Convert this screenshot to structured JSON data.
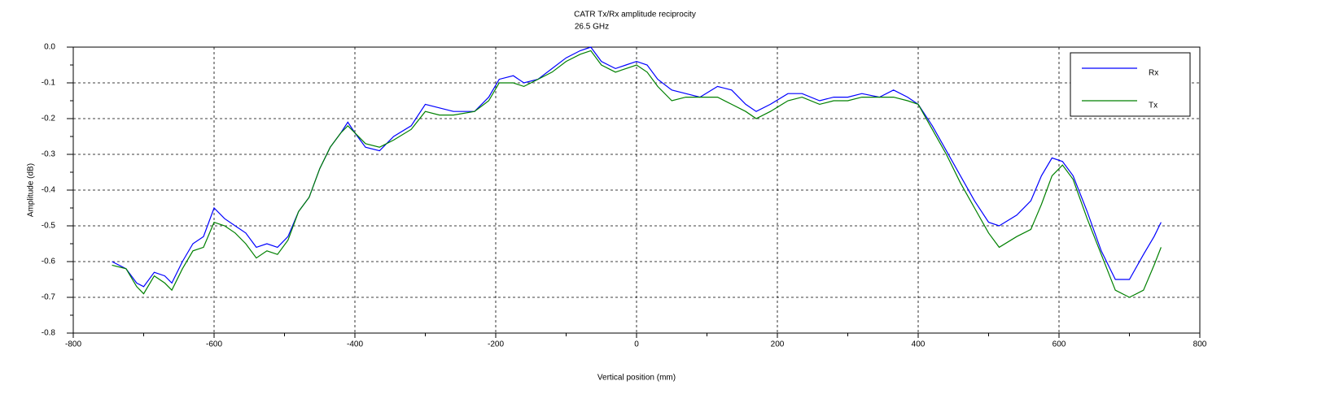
{
  "chart_data": {
    "type": "line",
    "title": "CATR Tx/Rx amplitude reciprocity",
    "subtitle": "26.5 GHz",
    "x_label": "Vertical position (mm)",
    "y_label": "Amplitude (dB)",
    "x": [
      -745,
      -725,
      -710,
      -700,
      -685,
      -670,
      -660,
      -645,
      -630,
      -615,
      -600,
      -585,
      -570,
      -555,
      -540,
      -525,
      -510,
      -495,
      -480,
      -465,
      -450,
      -435,
      -420,
      -410,
      -400,
      -385,
      -365,
      -345,
      -320,
      -300,
      -280,
      -260,
      -230,
      -210,
      -195,
      -175,
      -160,
      -140,
      -120,
      -100,
      -80,
      -65,
      -50,
      -30,
      -15,
      0,
      15,
      30,
      50,
      70,
      90,
      115,
      135,
      155,
      170,
      190,
      215,
      235,
      260,
      280,
      300,
      320,
      345,
      365,
      385,
      400,
      420,
      440,
      460,
      480,
      500,
      515,
      540,
      560,
      575,
      590,
      605,
      620,
      640,
      660,
      680,
      700,
      720,
      735,
      745
    ],
    "series": [
      {
        "name": "Rx",
        "color": "#0000ff",
        "values": [
          -0.6,
          -0.62,
          -0.66,
          -0.67,
          -0.63,
          -0.64,
          -0.66,
          -0.6,
          -0.55,
          -0.53,
          -0.45,
          -0.48,
          -0.5,
          -0.52,
          -0.56,
          -0.55,
          -0.56,
          -0.53,
          -0.46,
          -0.42,
          -0.34,
          -0.28,
          -0.24,
          -0.21,
          -0.24,
          -0.28,
          -0.29,
          -0.25,
          -0.22,
          -0.16,
          -0.17,
          -0.18,
          -0.18,
          -0.14,
          -0.09,
          -0.08,
          -0.1,
          -0.09,
          -0.06,
          -0.03,
          -0.01,
          0.0,
          -0.04,
          -0.06,
          -0.05,
          -0.04,
          -0.05,
          -0.09,
          -0.12,
          -0.13,
          -0.14,
          -0.11,
          -0.12,
          -0.16,
          -0.18,
          -0.16,
          -0.13,
          -0.13,
          -0.15,
          -0.14,
          -0.14,
          -0.13,
          -0.14,
          -0.12,
          -0.14,
          -0.16,
          -0.22,
          -0.29,
          -0.36,
          -0.43,
          -0.49,
          -0.5,
          -0.47,
          -0.43,
          -0.36,
          -0.31,
          -0.32,
          -0.36,
          -0.46,
          -0.57,
          -0.65,
          -0.65,
          -0.58,
          -0.53,
          -0.49
        ]
      },
      {
        "name": "Tx",
        "color": "#008000",
        "values": [
          -0.61,
          -0.62,
          -0.67,
          -0.69,
          -0.64,
          -0.66,
          -0.68,
          -0.62,
          -0.57,
          -0.56,
          -0.49,
          -0.5,
          -0.52,
          -0.55,
          -0.59,
          -0.57,
          -0.58,
          -0.54,
          -0.46,
          -0.42,
          -0.34,
          -0.28,
          -0.24,
          -0.22,
          -0.24,
          -0.27,
          -0.28,
          -0.26,
          -0.23,
          -0.18,
          -0.19,
          -0.19,
          -0.18,
          -0.15,
          -0.1,
          -0.1,
          -0.11,
          -0.09,
          -0.07,
          -0.04,
          -0.02,
          -0.01,
          -0.05,
          -0.07,
          -0.06,
          -0.05,
          -0.07,
          -0.11,
          -0.15,
          -0.14,
          -0.14,
          -0.14,
          -0.16,
          -0.18,
          -0.2,
          -0.18,
          -0.15,
          -0.14,
          -0.16,
          -0.15,
          -0.15,
          -0.14,
          -0.14,
          -0.14,
          -0.15,
          -0.16,
          -0.23,
          -0.3,
          -0.38,
          -0.45,
          -0.52,
          -0.56,
          -0.53,
          -0.51,
          -0.44,
          -0.36,
          -0.33,
          -0.37,
          -0.48,
          -0.58,
          -0.68,
          -0.7,
          -0.68,
          -0.61,
          -0.56
        ]
      }
    ],
    "xlim": [
      -800,
      800
    ],
    "xticks": [
      -800,
      -600,
      -400,
      -200,
      0,
      200,
      400,
      600,
      800
    ],
    "ylim": [
      -0.8,
      0
    ],
    "yticks": [
      {
        "value": 0,
        "label": "0.0"
      },
      -0.1,
      -0.2,
      -0.3,
      -0.4,
      -0.5,
      -0.6,
      -0.7,
      -0.8
    ],
    "grid": true,
    "legend": "upper right"
  }
}
